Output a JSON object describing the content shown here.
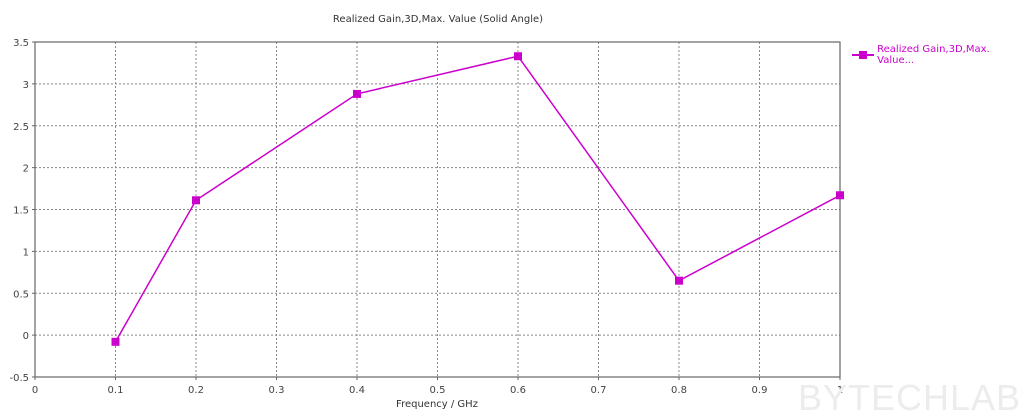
{
  "chart_data": {
    "type": "line",
    "title": "Realized Gain,3D,Max. Value (Solid Angle)",
    "xlabel": "Frequency / GHz",
    "ylabel": "",
    "xlim": [
      0,
      1
    ],
    "ylim": [
      -0.5,
      3.5
    ],
    "x_ticks": [
      "0",
      "0.1",
      "0.2",
      "0.3",
      "0.4",
      "0.5",
      "0.6",
      "0.7",
      "0.8",
      "0.9",
      "1"
    ],
    "y_ticks": [
      "-0.5",
      "0",
      "0.5",
      "1",
      "1.5",
      "2",
      "2.5",
      "3",
      "3.5"
    ],
    "grid": true,
    "legend_position": "right",
    "series": [
      {
        "name": "Realized Gain,3D,Max. Value...",
        "color": "#cc00cc",
        "marker": "square",
        "x": [
          0.1,
          0.2,
          0.4,
          0.6,
          0.8,
          1.0
        ],
        "values": [
          -0.08,
          1.61,
          2.88,
          3.33,
          0.65,
          1.67
        ]
      }
    ]
  },
  "watermark": "BYTECHLAB",
  "colors": {
    "series": "#cc00cc",
    "axis": "#666666",
    "grid": "#888888"
  }
}
